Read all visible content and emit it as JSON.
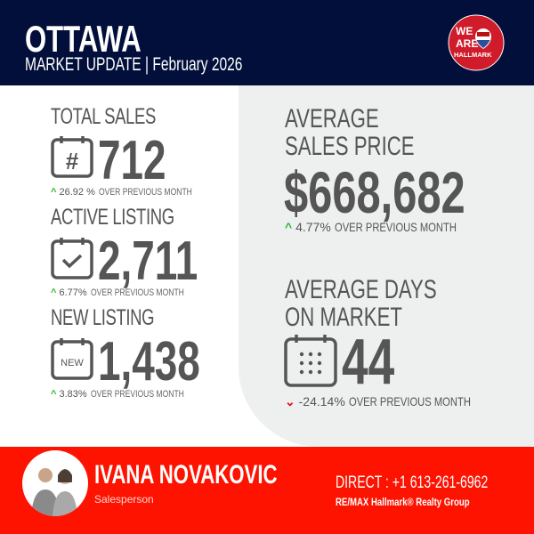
{
  "header": {
    "city": "OTTAWA",
    "subtitle": "MARKET UPDATE",
    "separator": "|",
    "date": "February 2026",
    "logo_text": "WE ARE HALLMARK",
    "colors": {
      "background": "#010f3a",
      "logo": "#d01c2a"
    }
  },
  "stats_left": [
    {
      "label": "TOTAL SALES",
      "icon": "calendar-hash-icon",
      "value": "712",
      "change": "26.92 %",
      "direction": "up",
      "change_label": "OVER PREVIOUS MONTH"
    },
    {
      "label": "ACTIVE LISTING",
      "icon": "calendar-check-icon",
      "value": "2,711",
      "change": "6.77%",
      "direction": "up",
      "change_label": "OVER PREVIOUS MONTH"
    },
    {
      "label": "NEW LISTING",
      "icon": "calendar-new-icon",
      "icon_text": "NEW",
      "value": "1,438",
      "change": "3.83%",
      "direction": "up",
      "change_label": "OVER PREVIOUS MONTH"
    }
  ],
  "stats_right": [
    {
      "label_line1": "AVERAGE",
      "label_line2": "SALES PRICE",
      "value": "$668,682",
      "change": "4.77%",
      "direction": "up",
      "change_label": "OVER PREVIOUS MONTH"
    },
    {
      "label_line1": "AVERAGE DAYS",
      "label_line2": "ON MARKET",
      "icon": "calendar-days-icon",
      "value": "44",
      "change": "-24.14%",
      "direction": "down",
      "change_label": "OVER PREVIOUS MONTH"
    }
  ],
  "footer": {
    "name": "IVANA NOVAKOVIC",
    "role": "Salesperson",
    "direct": "DIRECT : +1 613-261-6962",
    "company": "RE/MAX Hallmark® Realty Group",
    "colors": {
      "background": "#fe1200",
      "up": "#2bb52b",
      "down": "#e01010"
    }
  }
}
